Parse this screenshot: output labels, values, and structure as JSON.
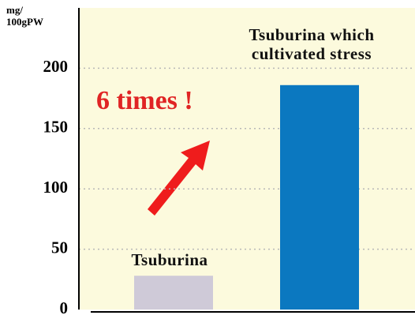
{
  "chart_data": {
    "type": "bar",
    "y_label_lines": [
      "mg/",
      "100gPW"
    ],
    "annotation": "6 times !",
    "categories": [
      "Tsuburina",
      "Tsuburina which cultivated stress"
    ],
    "values": [
      28,
      186
    ],
    "colors": [
      "#cfcad8",
      "#0b78c0"
    ],
    "ylim": [
      0,
      250
    ],
    "yticks": [
      0,
      50,
      100,
      150,
      200
    ],
    "grid": true
  }
}
